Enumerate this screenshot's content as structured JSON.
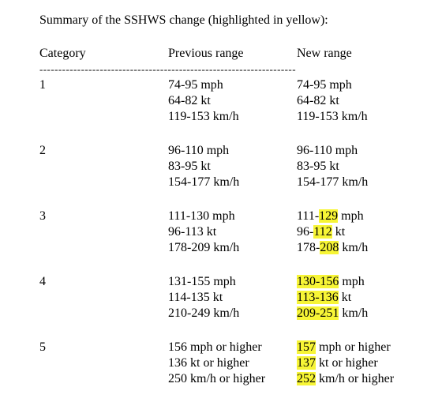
{
  "title": "Summary of the SSHWS change (highlighted in yellow):",
  "headers": [
    "Category",
    "Previous range",
    "New range"
  ],
  "separator": "--------------------------------------------------------------------",
  "rows": [
    {
      "category": "1",
      "previous": [
        "74-95 mph",
        "64-82 kt",
        "119-153 km/h"
      ],
      "new": [
        [
          {
            "text": "74-95 mph",
            "highlight": false
          }
        ],
        [
          {
            "text": "64-82 kt",
            "highlight": false
          }
        ],
        [
          {
            "text": "119-153 km/h",
            "highlight": false
          }
        ]
      ]
    },
    {
      "category": "2",
      "previous": [
        "96-110 mph",
        "83-95 kt",
        "154-177 km/h"
      ],
      "new": [
        [
          {
            "text": "96-110 mph",
            "highlight": false
          }
        ],
        [
          {
            "text": "83-95 kt",
            "highlight": false
          }
        ],
        [
          {
            "text": "154-177 km/h",
            "highlight": false
          }
        ]
      ]
    },
    {
      "category": "3",
      "previous": [
        "111-130 mph",
        "96-113 kt",
        "178-209 km/h"
      ],
      "new": [
        [
          {
            "text": "111-",
            "highlight": false
          },
          {
            "text": "129",
            "highlight": true
          },
          {
            "text": " mph",
            "highlight": false
          }
        ],
        [
          {
            "text": "96-",
            "highlight": false
          },
          {
            "text": "112",
            "highlight": true
          },
          {
            "text": " kt",
            "highlight": false
          }
        ],
        [
          {
            "text": "178-",
            "highlight": false
          },
          {
            "text": "208",
            "highlight": true
          },
          {
            "text": " km/h",
            "highlight": false
          }
        ]
      ]
    },
    {
      "category": "4",
      "previous": [
        "131-155 mph",
        "114-135 kt",
        "210-249 km/h"
      ],
      "new": [
        [
          {
            "text": "130-156",
            "highlight": true
          },
          {
            "text": " mph",
            "highlight": false
          }
        ],
        [
          {
            "text": "113-136",
            "highlight": true
          },
          {
            "text": " kt",
            "highlight": false
          }
        ],
        [
          {
            "text": "209-251",
            "highlight": true
          },
          {
            "text": " km/h",
            "highlight": false
          }
        ]
      ]
    },
    {
      "category": "5",
      "previous": [
        "156 mph or higher",
        "136 kt or higher",
        "250 km/h or higher"
      ],
      "new": [
        [
          {
            "text": "157",
            "highlight": true
          },
          {
            "text": " mph or higher",
            "highlight": false
          }
        ],
        [
          {
            "text": "137",
            "highlight": true
          },
          {
            "text": " kt or higher",
            "highlight": false
          }
        ],
        [
          {
            "text": "252",
            "highlight": true
          },
          {
            "text": " km/h or higher",
            "highlight": false
          }
        ]
      ]
    }
  ]
}
